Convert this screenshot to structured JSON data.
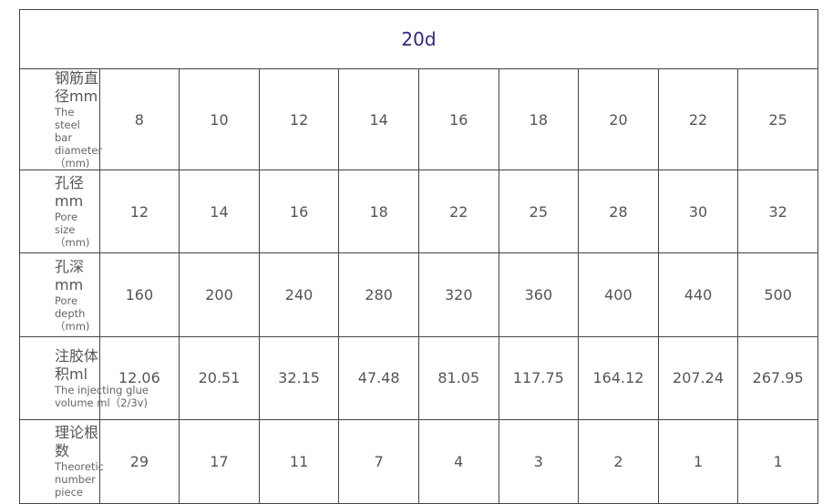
{
  "title": "20d",
  "rows": [
    {
      "cn": "钢筋直径mm",
      "en": "The steel bar diameter（mm)",
      "values": [
        "8",
        "10",
        "12",
        "14",
        "16",
        "18",
        "20",
        "22",
        "25"
      ]
    },
    {
      "cn": "孔径mm",
      "en": "Pore size （mm)",
      "values": [
        "12",
        "14",
        "16",
        "18",
        "22",
        "25",
        "28",
        "30",
        "32"
      ]
    },
    {
      "cn": "孔深mm",
      "en": "Pore depth（mm)",
      "values": [
        "160",
        "200",
        "240",
        "280",
        "320",
        "360",
        "400",
        "440",
        "500"
      ]
    },
    {
      "cn": "注胶体积ml",
      "en": "The injecting glue volume ml（2/3v)",
      "values": [
        "12.06",
        "20.51",
        "32.15",
        "47.48",
        "81.05",
        "117.75",
        "164.12",
        "207.24",
        "267.95"
      ]
    },
    {
      "cn": "理论根数",
      "en": "Theoretic number piece",
      "values": [
        "29",
        "17",
        "11",
        "7",
        "4",
        "3",
        "2",
        "1",
        "1"
      ]
    }
  ],
  "colors": {
    "title": "#2e2a78",
    "border": "#444444",
    "text": "#555555"
  }
}
